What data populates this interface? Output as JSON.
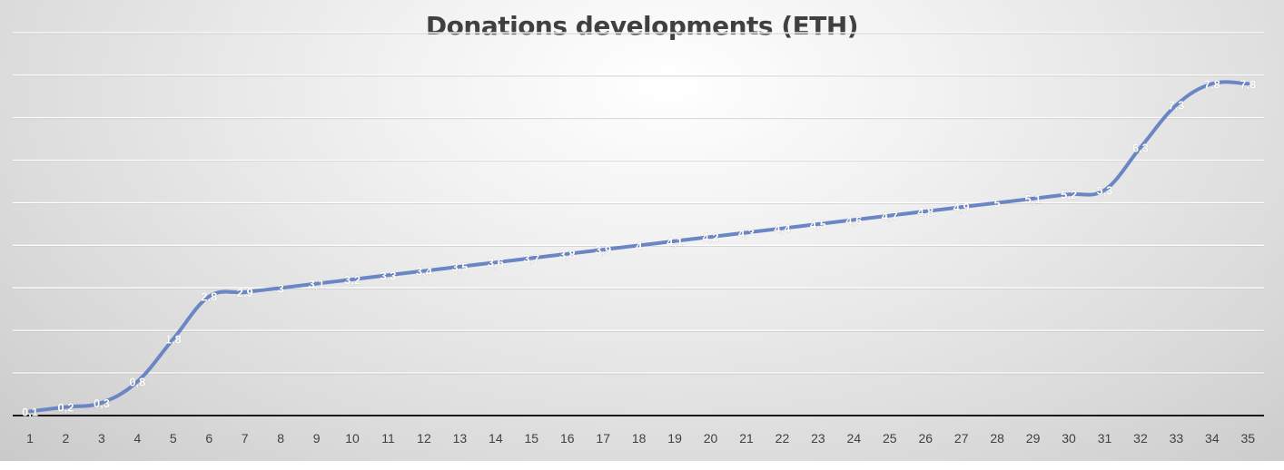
{
  "chart_data": {
    "type": "line",
    "title": "Donations developments (ETH)",
    "xlabel": "",
    "ylabel": "",
    "categories": [
      "1",
      "2",
      "3",
      "4",
      "5",
      "6",
      "7",
      "8",
      "9",
      "10",
      "11",
      "12",
      "13",
      "14",
      "15",
      "16",
      "17",
      "18",
      "19",
      "20",
      "21",
      "22",
      "23",
      "24",
      "25",
      "26",
      "27",
      "28",
      "29",
      "30",
      "31",
      "32",
      "33",
      "34",
      "35"
    ],
    "series": [
      {
        "values": [
          0.1,
          0.2,
          0.3,
          0.8,
          1.8,
          2.8,
          2.9,
          3,
          3.1,
          3.2,
          3.3,
          3.4,
          3.5,
          3.6,
          3.7,
          3.8,
          3.9,
          4,
          4.1,
          4.2,
          4.3,
          4.4,
          4.5,
          4.6,
          4.7,
          4.8,
          4.9,
          5,
          5.1,
          5.2,
          5.3,
          6.3,
          7.3,
          7.8,
          7.8
        ],
        "labels": [
          "0,1",
          "0,2",
          "0,3",
          "0,8",
          "1,8",
          "2,8",
          "2,9",
          "3",
          "3,1",
          "3,2",
          "3,3",
          "3,4",
          "3,5",
          "3,6",
          "3,7",
          "3,8",
          "3,9",
          "4",
          "4,1",
          "4,2",
          "4,3",
          "4,4",
          "4,5",
          "4,6",
          "4,7",
          "4,8",
          "4,9",
          "5",
          "5,1",
          "5,2",
          "5,3",
          "6,3",
          "7,3",
          "7,8",
          "7,8"
        ],
        "color": "#6a86c4"
      }
    ],
    "ylim": [
      0,
      9
    ],
    "grid": true,
    "legend": "none"
  }
}
